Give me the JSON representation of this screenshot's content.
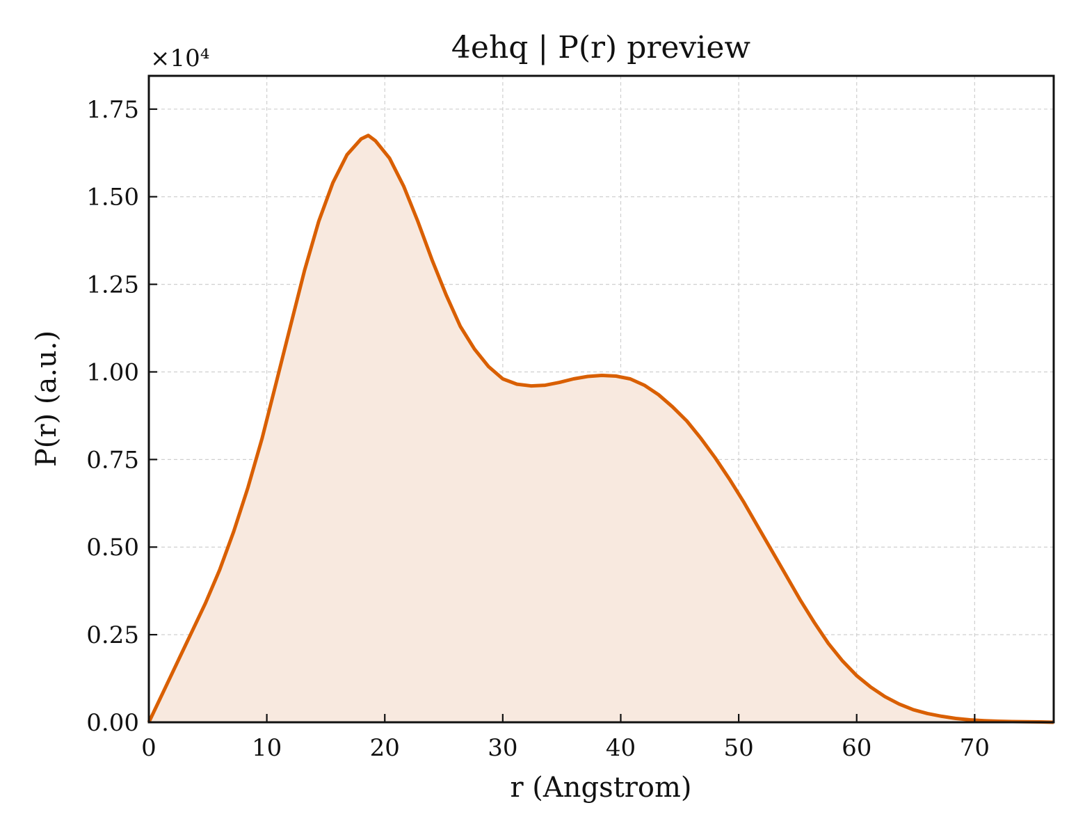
{
  "chart_data": {
    "type": "area",
    "title": "4ehq | P(r) preview",
    "xlabel": "r (Angstrom)",
    "ylabel": "P(r) (a.u.)",
    "y_multiplier_label": "×10⁴",
    "xlim": [
      0,
      76.7
    ],
    "ylim": [
      0,
      18450
    ],
    "x_ticks": [
      0,
      10,
      20,
      30,
      40,
      50,
      60,
      70
    ],
    "y_ticks": [
      0,
      2500,
      5000,
      7500,
      10000,
      12500,
      15000,
      17500
    ],
    "x_tick_labels": [
      "0",
      "10",
      "20",
      "30",
      "40",
      "50",
      "60",
      "70"
    ],
    "y_tick_labels": [
      "0.00",
      "0.25",
      "0.50",
      "0.75",
      "1.00",
      "1.25",
      "1.50",
      "1.75"
    ],
    "grid": true,
    "series": [
      {
        "color": "#d95f02",
        "fill_color": "#f8e9df",
        "x": [
          0,
          1.2,
          2.4,
          3.6,
          4.8,
          6.0,
          7.2,
          8.4,
          9.6,
          10.8,
          12.0,
          13.2,
          14.4,
          15.6,
          16.8,
          18.0,
          18.6,
          19.2,
          20.4,
          21.6,
          22.8,
          24.0,
          25.2,
          26.4,
          27.6,
          28.8,
          30.0,
          31.2,
          32.4,
          33.6,
          34.8,
          36.0,
          37.2,
          38.4,
          39.6,
          40.8,
          42.0,
          43.2,
          44.4,
          45.6,
          46.8,
          48.0,
          49.2,
          50.4,
          51.6,
          52.8,
          54.0,
          55.2,
          56.4,
          57.6,
          58.8,
          60.0,
          61.2,
          62.4,
          63.6,
          64.8,
          66.0,
          67.2,
          68.4,
          69.6,
          70.8,
          72.0,
          73.2,
          74.4,
          75.6,
          76.7
        ],
        "y": [
          0,
          850,
          1700,
          2550,
          3400,
          4350,
          5450,
          6700,
          8100,
          9700,
          11300,
          12900,
          14300,
          15400,
          16200,
          16650,
          16750,
          16600,
          16100,
          15300,
          14300,
          13200,
          12200,
          11300,
          10650,
          10150,
          9800,
          9650,
          9600,
          9620,
          9700,
          9800,
          9870,
          9900,
          9880,
          9800,
          9620,
          9350,
          9000,
          8600,
          8100,
          7550,
          6950,
          6300,
          5600,
          4900,
          4200,
          3500,
          2850,
          2250,
          1750,
          1330,
          1000,
          730,
          520,
          360,
          250,
          170,
          110,
          70,
          45,
          30,
          20,
          15,
          10,
          0
        ]
      }
    ]
  }
}
